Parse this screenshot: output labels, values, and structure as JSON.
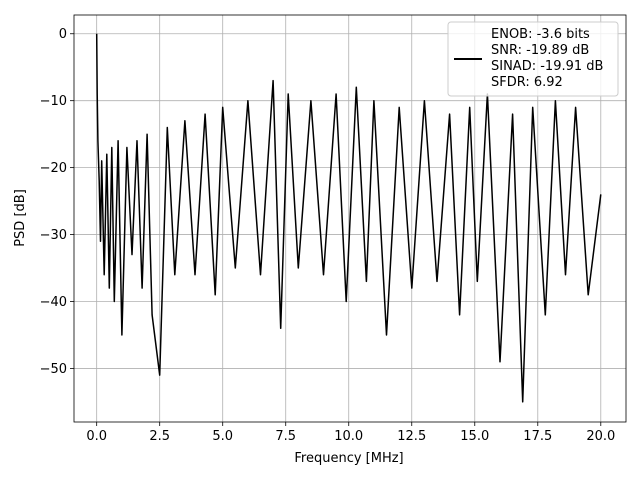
{
  "chart_data": {
    "type": "line",
    "title": "",
    "xlabel": "Frequency [MHz]",
    "ylabel": "PSD [dB]",
    "xlim": [
      -0.9,
      21.0
    ],
    "ylim": [
      -58.0,
      2.8
    ],
    "xticks": [
      0.0,
      2.5,
      5.0,
      7.5,
      10.0,
      12.5,
      15.0,
      17.5,
      20.0
    ],
    "xtick_labels": [
      "0.0",
      "2.5",
      "5.0",
      "7.5",
      "10.0",
      "12.5",
      "15.0",
      "17.5",
      "20.0"
    ],
    "yticks": [
      0,
      -10,
      -20,
      -30,
      -40,
      -50
    ],
    "ytick_labels": [
      "0",
      "−10",
      "−20",
      "−30",
      "−40",
      "−50"
    ],
    "grid": true,
    "legend": {
      "placement": "top-right",
      "entries": [
        "ENOB: -3.6 bits",
        "SNR: -19.89 dB",
        "SINAD: -19.91 dB",
        "SFDR: 6.92"
      ]
    },
    "series": [
      {
        "color": "#000000",
        "note_points": "approximate envelope of a dense noise spectrum; key visible extrema captured",
        "x": [
          0.0,
          0.02,
          0.05,
          0.1,
          0.15,
          0.2,
          0.3,
          0.4,
          0.5,
          0.6,
          0.7,
          0.85,
          1.0,
          1.2,
          1.4,
          1.6,
          1.8,
          2.0,
          2.2,
          2.5,
          2.8,
          3.1,
          3.5,
          3.9,
          4.3,
          4.7,
          5.0,
          5.5,
          6.0,
          6.5,
          7.0,
          7.3,
          7.6,
          8.0,
          8.5,
          9.0,
          9.5,
          9.9,
          10.3,
          10.7,
          11.0,
          11.5,
          12.0,
          12.5,
          13.0,
          13.5,
          14.0,
          14.4,
          14.8,
          15.1,
          15.5,
          16.0,
          16.5,
          16.9,
          17.3,
          17.8,
          18.2,
          18.6,
          19.0,
          19.5,
          20.0
        ],
        "y": [
          0.0,
          -9.0,
          -16.0,
          -22.0,
          -31.0,
          -19.0,
          -36.0,
          -18.0,
          -38.0,
          -17.0,
          -40.0,
          -16.0,
          -45.0,
          -17.0,
          -33.0,
          -16.0,
          -38.0,
          -15.0,
          -42.0,
          -51.0,
          -14.0,
          -36.0,
          -13.0,
          -36.0,
          -12.0,
          -39.0,
          -11.0,
          -35.0,
          -10.0,
          -36.0,
          -7.0,
          -44.0,
          -9.0,
          -35.0,
          -10.0,
          -36.0,
          -9.0,
          -40.0,
          -8.0,
          -37.0,
          -10.0,
          -45.0,
          -11.0,
          -38.0,
          -10.0,
          -37.0,
          -12.0,
          -42.0,
          -11.0,
          -37.0,
          -9.0,
          -49.0,
          -12.0,
          -55.0,
          -11.0,
          -42.0,
          -10.0,
          -36.0,
          -11.0,
          -39.0,
          -24.0
        ]
      }
    ]
  }
}
